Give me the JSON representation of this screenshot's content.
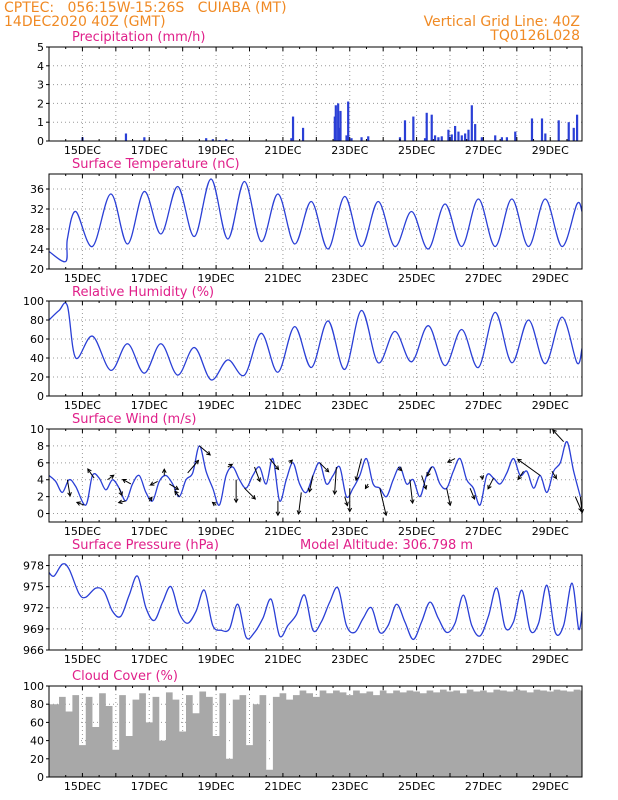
{
  "header": {
    "line1_left": "CPTEC:   056:15W-15:26S   CUIABA (MT)",
    "line2_left": "14DEC2020 40Z (GMT)",
    "line2_right": "Vertical Grid Line: 40Z",
    "line3_right": "TQ0126L028"
  },
  "colors": {
    "header": "#f08a24",
    "title": "#e0208a",
    "line": "#2a3fd6",
    "bar": "#2a3fd6",
    "cloud": "#a8a8a8",
    "arrow": "#000000"
  },
  "chart_data": [
    {
      "type": "bar",
      "title": "Precipitation (mm/h)",
      "x_labels": [
        "15DEC",
        "17DEC",
        "19DEC",
        "21DEC",
        "23DEC",
        "25DEC",
        "27DEC",
        "29DEC"
      ],
      "ylim": [
        0,
        5
      ],
      "yticks": [
        0,
        1,
        2,
        3,
        4,
        5
      ],
      "x_day": [
        15.0,
        16.3,
        16.85,
        18.7,
        18.9,
        19.1,
        19.3,
        21.25,
        21.3,
        21.6,
        22.55,
        22.58,
        22.65,
        22.67,
        22.72,
        22.9,
        22.95,
        23.05,
        23.35,
        23.55,
        24.5,
        24.65,
        24.9,
        25.25,
        25.3,
        25.45,
        25.55,
        25.65,
        25.75,
        25.95,
        26.05,
        26.15,
        26.25,
        26.35,
        26.45,
        26.55,
        26.65,
        26.75,
        26.95,
        27.35,
        27.55,
        27.7,
        27.95,
        28.45,
        28.75,
        28.85,
        29.25,
        29.55,
        29.7,
        29.8
      ],
      "values": [
        0.2,
        0.4,
        0.2,
        0.15,
        0.1,
        0.05,
        0.1,
        0.15,
        1.3,
        0.7,
        1.3,
        1.9,
        2.0,
        0.7,
        1.6,
        0.3,
        2.1,
        0.15,
        0.2,
        0.25,
        0.2,
        1.1,
        1.3,
        0.15,
        1.5,
        1.4,
        0.3,
        0.2,
        0.25,
        0.6,
        0.35,
        0.8,
        0.5,
        0.3,
        0.4,
        0.6,
        1.9,
        0.9,
        0.2,
        0.3,
        0.2,
        0.2,
        0.5,
        1.2,
        1.2,
        0.4,
        1.1,
        1.0,
        0.7,
        1.4
      ]
    },
    {
      "type": "line",
      "title": "Surface Temperature (nC)",
      "x_labels": [
        "15DEC",
        "17DEC",
        "19DEC",
        "21DEC",
        "23DEC",
        "25DEC",
        "27DEC",
        "29DEC"
      ],
      "ylim": [
        20,
        39
      ],
      "yticks": [
        20,
        24,
        28,
        32,
        36
      ],
      "x_day": [
        14.0,
        14.5,
        14.55,
        14.8,
        15.3,
        15.85,
        16.35,
        16.85,
        17.35,
        17.85,
        18.35,
        18.85,
        19.35,
        19.85,
        20.35,
        20.85,
        21.35,
        21.85,
        22.35,
        22.85,
        23.35,
        23.85,
        24.35,
        24.85,
        25.35,
        25.85,
        26.35,
        26.85,
        27.35,
        27.85,
        28.35,
        28.85,
        29.35,
        29.8,
        29.95
      ],
      "values": [
        23.5,
        21.5,
        26.0,
        31.5,
        24.5,
        35.0,
        25.0,
        35.5,
        27.0,
        36.5,
        26.5,
        38.0,
        26.0,
        37.5,
        25.5,
        35.0,
        25.0,
        33.5,
        24.0,
        34.5,
        24.5,
        33.5,
        24.5,
        31.5,
        24.0,
        33.0,
        24.5,
        34.0,
        24.5,
        34.0,
        24.5,
        34.0,
        24.5,
        33.0,
        31.5
      ]
    },
    {
      "type": "line",
      "title": "Relative Humidity (%)",
      "x_labels": [
        "15DEC",
        "17DEC",
        "19DEC",
        "21DEC",
        "23DEC",
        "25DEC",
        "27DEC",
        "29DEC"
      ],
      "ylim": [
        0,
        100
      ],
      "yticks": [
        0,
        20,
        40,
        60,
        80,
        100
      ],
      "x_day": [
        14.0,
        14.3,
        14.55,
        14.8,
        15.3,
        15.85,
        16.35,
        16.85,
        17.35,
        17.85,
        18.35,
        18.85,
        19.35,
        19.85,
        20.35,
        20.85,
        21.35,
        21.85,
        22.35,
        22.85,
        23.35,
        23.85,
        24.35,
        24.85,
        25.35,
        25.85,
        26.35,
        26.85,
        27.35,
        27.85,
        28.35,
        28.85,
        29.35,
        29.8,
        29.95
      ],
      "values": [
        80,
        90,
        95,
        40,
        63,
        27,
        55,
        24,
        55,
        22,
        51,
        17,
        38,
        22,
        66,
        25,
        73,
        30,
        79,
        28,
        90,
        35,
        68,
        36,
        74,
        32,
        70,
        30,
        88,
        35,
        80,
        34,
        83,
        35,
        50
      ]
    },
    {
      "type": "line",
      "title": "Surface Wind (m/s)",
      "x_labels": [
        "15DEC",
        "17DEC",
        "19DEC",
        "21DEC",
        "23DEC",
        "25DEC",
        "27DEC",
        "29DEC"
      ],
      "ylim": [
        -1,
        10
      ],
      "yticks": [
        0,
        2,
        4,
        6,
        8,
        10
      ],
      "x_day": [
        14.0,
        14.2,
        14.4,
        14.6,
        14.8,
        15.1,
        15.3,
        15.5,
        15.7,
        15.9,
        16.1,
        16.3,
        16.5,
        16.7,
        16.9,
        17.1,
        17.3,
        17.5,
        17.7,
        17.9,
        18.1,
        18.3,
        18.5,
        18.7,
        18.9,
        19.1,
        19.3,
        19.5,
        19.7,
        19.9,
        20.1,
        20.3,
        20.5,
        20.7,
        20.9,
        21.1,
        21.3,
        21.5,
        21.7,
        21.9,
        22.1,
        22.3,
        22.5,
        22.7,
        22.9,
        23.1,
        23.3,
        23.5,
        23.7,
        23.9,
        24.1,
        24.3,
        24.5,
        24.7,
        24.9,
        25.1,
        25.3,
        25.5,
        25.7,
        25.9,
        26.1,
        26.3,
        26.5,
        26.7,
        26.9,
        27.1,
        27.3,
        27.5,
        27.7,
        27.9,
        28.1,
        28.3,
        28.5,
        28.7,
        28.9,
        29.1,
        29.3,
        29.5,
        29.7,
        29.9
      ],
      "values": [
        4.5,
        3.8,
        2.5,
        4.0,
        3.2,
        1.0,
        4.5,
        4.2,
        2.8,
        4.0,
        3.0,
        1.5,
        3.5,
        4.5,
        2.5,
        1.5,
        3.8,
        4.5,
        3.5,
        2.0,
        4.0,
        4.8,
        8.0,
        5.0,
        3.0,
        1.0,
        4.5,
        5.5,
        4.0,
        3.0,
        4.5,
        5.5,
        3.5,
        6.5,
        1.5,
        4.0,
        6.0,
        3.5,
        2.5,
        4.5,
        6.0,
        3.5,
        4.5,
        5.5,
        2.0,
        3.0,
        4.5,
        6.5,
        3.5,
        3.0,
        2.0,
        4.0,
        5.5,
        3.5,
        4.0,
        2.0,
        4.5,
        5.5,
        3.5,
        3.0,
        5.0,
        6.5,
        4.0,
        3.0,
        1.0,
        4.5,
        4.2,
        3.5,
        4.8,
        6.5,
        4.5,
        5.0,
        3.0,
        4.5,
        2.5,
        5.0,
        6.0,
        8.5,
        5.0,
        2.0
      ],
      "arrows": [
        {
          "day": 14.55,
          "u": 0.3,
          "v": -1.8
        },
        {
          "day": 15.05,
          "u": -0.8,
          "v": 0.3
        },
        {
          "day": 15.35,
          "u": -0.7,
          "v": 1.0
        },
        {
          "day": 15.75,
          "u": 0.7,
          "v": 0.5
        },
        {
          "day": 16.1,
          "u": 0.3,
          "v": -0.8
        },
        {
          "day": 16.3,
          "u": -0.8,
          "v": -0.2
        },
        {
          "day": 16.45,
          "u": -0.9,
          "v": 0.5
        },
        {
          "day": 17.0,
          "u": 0.3,
          "v": 0.4
        },
        {
          "day": 17.25,
          "u": -0.8,
          "v": -0.4
        },
        {
          "day": 17.45,
          "u": 0.0,
          "v": 0.7
        },
        {
          "day": 17.6,
          "u": 1.0,
          "v": -0.6
        },
        {
          "day": 17.9,
          "u": -0.5,
          "v": 0.6
        },
        {
          "day": 18.15,
          "u": 1.2,
          "v": 1.4
        },
        {
          "day": 18.5,
          "u": 1.2,
          "v": -1.0
        },
        {
          "day": 19.0,
          "u": -0.4,
          "v": 0.3
        },
        {
          "day": 19.35,
          "u": 0.5,
          "v": 0.3
        },
        {
          "day": 19.6,
          "u": 0.0,
          "v": -2.5
        },
        {
          "day": 19.85,
          "u": 1.2,
          "v": -1.2
        },
        {
          "day": 20.15,
          "u": 0.6,
          "v": -1.6
        },
        {
          "day": 20.6,
          "u": 1.0,
          "v": -1.2
        },
        {
          "day": 20.85,
          "u": 0.0,
          "v": -1.6
        },
        {
          "day": 21.2,
          "u": 0.3,
          "v": 0.3
        },
        {
          "day": 21.55,
          "u": -0.3,
          "v": -2.4
        },
        {
          "day": 21.9,
          "u": -0.4,
          "v": -1.8
        },
        {
          "day": 22.1,
          "u": 1.0,
          "v": -1.0
        },
        {
          "day": 22.6,
          "u": -0.2,
          "v": -3.0
        },
        {
          "day": 22.85,
          "u": 0.3,
          "v": -1.0
        },
        {
          "day": 23.0,
          "u": 0.0,
          "v": -2.6
        },
        {
          "day": 23.35,
          "u": -0.6,
          "v": -2.4
        },
        {
          "day": 23.55,
          "u": -0.3,
          "v": -0.5
        },
        {
          "day": 23.9,
          "u": 0.7,
          "v": -3.0
        },
        {
          "day": 24.45,
          "u": 0.4,
          "v": -0.4
        },
        {
          "day": 24.8,
          "u": 0.3,
          "v": -2.6
        },
        {
          "day": 25.15,
          "u": 0.5,
          "v": -1.5
        },
        {
          "day": 25.45,
          "u": -0.5,
          "v": -1.0
        },
        {
          "day": 25.9,
          "u": 0.4,
          "v": -1.9
        },
        {
          "day": 26.15,
          "u": -0.8,
          "v": -0.4
        },
        {
          "day": 26.6,
          "u": 0.5,
          "v": -1.2
        },
        {
          "day": 26.95,
          "u": 0.1,
          "v": -0.4
        },
        {
          "day": 27.3,
          "u": -0.6,
          "v": -1.2
        },
        {
          "day": 28.2,
          "u": -0.6,
          "v": -0.9
        },
        {
          "day": 28.7,
          "u": -2.5,
          "v": 1.8
        },
        {
          "day": 29.05,
          "u": 0.5,
          "v": -0.8
        },
        {
          "day": 29.4,
          "u": -1.2,
          "v": 1.3
        },
        {
          "day": 29.75,
          "u": 0.7,
          "v": -1.6
        },
        {
          "day": 29.9,
          "u": 0.2,
          "v": -1.8
        }
      ]
    },
    {
      "type": "line",
      "title": "Surface Pressure (hPa)",
      "annotation": "Model Altitude: 306.798 m",
      "x_labels": [
        "15DEC",
        "17DEC",
        "19DEC",
        "21DEC",
        "23DEC",
        "25DEC",
        "27DEC",
        "29DEC"
      ],
      "ylim": [
        966,
        979.5
      ],
      "yticks": [
        966,
        969,
        972,
        975,
        978
      ],
      "x_day": [
        14.0,
        14.15,
        14.4,
        14.6,
        14.9,
        15.1,
        15.4,
        15.65,
        15.9,
        16.15,
        16.4,
        16.65,
        16.9,
        17.15,
        17.4,
        17.65,
        17.9,
        18.15,
        18.4,
        18.65,
        18.9,
        19.15,
        19.4,
        19.65,
        19.9,
        20.15,
        20.4,
        20.65,
        20.9,
        21.15,
        21.4,
        21.65,
        21.9,
        22.15,
        22.4,
        22.65,
        22.9,
        23.15,
        23.4,
        23.65,
        23.9,
        24.15,
        24.4,
        24.65,
        24.9,
        25.15,
        25.4,
        25.65,
        25.9,
        26.15,
        26.4,
        26.65,
        26.9,
        27.15,
        27.4,
        27.65,
        27.9,
        28.15,
        28.4,
        28.65,
        28.9,
        29.15,
        29.4,
        29.65,
        29.85,
        29.95
      ],
      "values": [
        977.0,
        976.5,
        978.2,
        977.5,
        974.0,
        973.5,
        974.8,
        974.3,
        971.5,
        970.8,
        973.8,
        976.5,
        972.0,
        970.2,
        972.8,
        975.0,
        971.2,
        969.8,
        971.5,
        974.5,
        969.5,
        968.8,
        969.0,
        972.5,
        967.8,
        968.5,
        970.5,
        973.2,
        968.0,
        969.5,
        971.0,
        973.8,
        968.8,
        970.0,
        972.8,
        974.8,
        969.5,
        968.5,
        970.5,
        972.0,
        968.5,
        969.5,
        972.5,
        970.0,
        967.5,
        970.0,
        972.8,
        970.5,
        968.5,
        969.8,
        973.8,
        969.5,
        968.0,
        970.8,
        974.8,
        969.2,
        970.0,
        974.5,
        968.8,
        969.8,
        975.2,
        968.5,
        969.5,
        975.5,
        969.0,
        971.5
      ]
    },
    {
      "type": "area",
      "title": "Cloud Cover (%)",
      "x_labels": [
        "15DEC",
        "17DEC",
        "19DEC",
        "21DEC",
        "23DEC",
        "25DEC",
        "27DEC",
        "29DEC"
      ],
      "ylim": [
        0,
        100
      ],
      "yticks": [
        0,
        20,
        40,
        60,
        80,
        100
      ],
      "x_day": [
        14.0,
        14.3,
        14.5,
        14.7,
        14.9,
        15.1,
        15.3,
        15.5,
        15.7,
        15.9,
        16.1,
        16.3,
        16.5,
        16.7,
        16.9,
        17.1,
        17.3,
        17.5,
        17.7,
        17.9,
        18.1,
        18.3,
        18.5,
        18.7,
        18.9,
        19.1,
        19.3,
        19.5,
        19.7,
        19.9,
        20.1,
        20.3,
        20.5,
        20.7,
        20.9,
        21.1,
        21.3,
        21.5,
        21.7,
        21.9,
        22.1,
        22.3,
        22.5,
        22.7,
        22.9,
        23.1,
        23.3,
        23.5,
        23.7,
        23.9,
        24.1,
        24.3,
        24.5,
        24.7,
        24.9,
        25.1,
        25.3,
        25.5,
        25.7,
        25.9,
        26.1,
        26.3,
        26.5,
        26.7,
        26.9,
        27.1,
        27.3,
        27.5,
        27.7,
        27.9,
        28.1,
        28.3,
        28.5,
        28.7,
        28.9,
        29.1,
        29.3,
        29.5,
        29.7,
        29.9
      ],
      "values": [
        80,
        88,
        72,
        90,
        35,
        88,
        55,
        92,
        78,
        30,
        90,
        45,
        85,
        92,
        60,
        88,
        40,
        93,
        85,
        50,
        90,
        70,
        94,
        88,
        45,
        92,
        20,
        85,
        90,
        35,
        80,
        90,
        8,
        88,
        92,
        85,
        90,
        95,
        92,
        88,
        95,
        92,
        95,
        93,
        90,
        95,
        92,
        94,
        90,
        95,
        92,
        95,
        93,
        95,
        94,
        92,
        95,
        93,
        96,
        94,
        95,
        92,
        96,
        94,
        95,
        93,
        96,
        95,
        94,
        96,
        95,
        93,
        96,
        95,
        94,
        96,
        95,
        94,
        96,
        95
      ]
    }
  ]
}
